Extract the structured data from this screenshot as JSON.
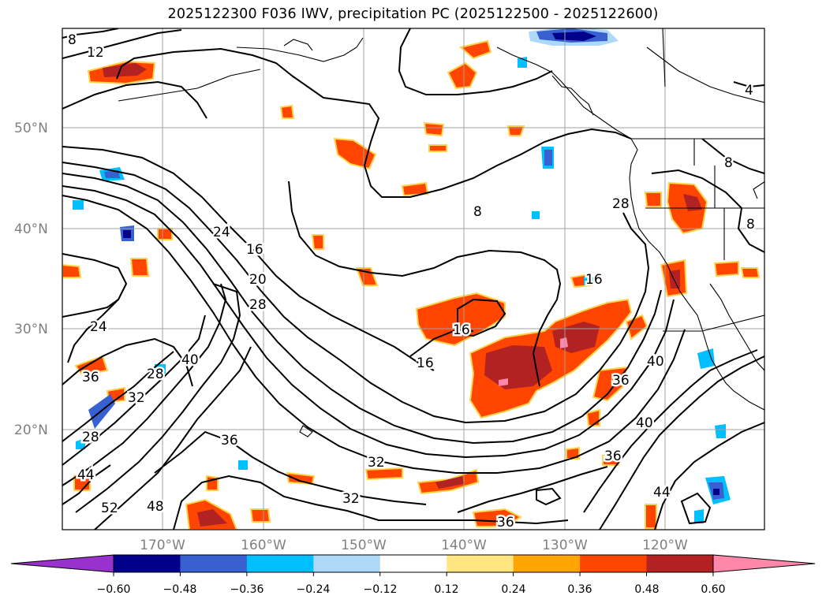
{
  "title": "2025122300 F036 IWV, precipitation PC (2025122500 - 2025122600)",
  "latitude_labels": [
    "50°N",
    "40°N",
    "30°N",
    "20°N"
  ],
  "longitude_labels": [
    "170°W",
    "160°W",
    "150°W",
    "140°W",
    "130°W",
    "120°W"
  ],
  "iwv_contour_labels": [
    "8",
    "12",
    "4",
    "8",
    "8",
    "8",
    "24",
    "16",
    "20",
    "28",
    "28",
    "16",
    "16",
    "16",
    "24",
    "36",
    "40",
    "28",
    "32",
    "28",
    "44",
    "36",
    "40",
    "40",
    "36",
    "36",
    "32",
    "32",
    "52",
    "48",
    "44",
    "36"
  ],
  "colorbar": {
    "tick_labels": [
      "−0.60",
      "−0.48",
      "−0.36",
      "−0.24",
      "−0.12",
      "0.12",
      "0.24",
      "0.36",
      "0.48",
      "0.60"
    ],
    "colors": [
      "#9932cc",
      "#00008b",
      "#3860d0",
      "#00bfff",
      "#add8f8",
      "#ffffff",
      "#ffe680",
      "#ffa500",
      "#ff4500",
      "#b22222",
      "#ff88aa"
    ]
  }
}
